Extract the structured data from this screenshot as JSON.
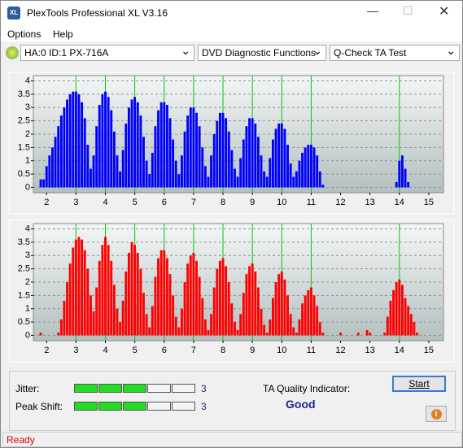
{
  "window": {
    "title": "PlexTools Professional XL V3.16",
    "icon": "XL"
  },
  "menu": [
    "Options",
    "Help"
  ],
  "toolbar": {
    "drive": "HA:0 ID:1  PX-716A",
    "function": "DVD Diagnostic Functions",
    "test": "Q-Check TA Test"
  },
  "chart_data": [
    {
      "type": "bar",
      "color": "#0000ff",
      "grid": true,
      "marker_color": "#00cc00",
      "markers": [
        3,
        4,
        5,
        6,
        7,
        8,
        9,
        10,
        11,
        14
      ],
      "xlim": [
        1.55,
        15.5
      ],
      "ylim": [
        -0.2,
        4.2
      ],
      "xticks": [
        2,
        3,
        4,
        5,
        6,
        7,
        8,
        9,
        10,
        11,
        12,
        13,
        14,
        15
      ],
      "yticks": [
        0,
        0.5,
        1,
        1.5,
        2,
        2.5,
        3,
        3.5,
        4
      ],
      "x": [
        1.8,
        1.9,
        2.0,
        2.1,
        2.2,
        2.3,
        2.4,
        2.5,
        2.6,
        2.7,
        2.8,
        2.9,
        3.0,
        3.1,
        3.2,
        3.3,
        3.4,
        3.5,
        3.6,
        3.7,
        3.8,
        3.9,
        4.0,
        4.1,
        4.2,
        4.3,
        4.4,
        4.5,
        4.6,
        4.7,
        4.8,
        4.9,
        5.0,
        5.1,
        5.2,
        5.3,
        5.4,
        5.5,
        5.6,
        5.7,
        5.8,
        5.9,
        6.0,
        6.1,
        6.2,
        6.3,
        6.4,
        6.5,
        6.6,
        6.7,
        6.8,
        6.9,
        7.0,
        7.1,
        7.2,
        7.3,
        7.4,
        7.5,
        7.6,
        7.7,
        7.8,
        7.9,
        8.0,
        8.1,
        8.2,
        8.3,
        8.4,
        8.5,
        8.6,
        8.7,
        8.8,
        8.9,
        9.0,
        9.1,
        9.2,
        9.3,
        9.4,
        9.5,
        9.6,
        9.7,
        9.8,
        9.9,
        10.0,
        10.1,
        10.2,
        10.3,
        10.4,
        10.5,
        10.6,
        10.7,
        10.8,
        10.9,
        11.0,
        11.1,
        11.2,
        11.3,
        11.4,
        11.5,
        11.6,
        11.7,
        11.8,
        11.9,
        12.0,
        12.1,
        12.2,
        12.3,
        12.4,
        12.5,
        12.6,
        12.7,
        12.8,
        12.9,
        13.0,
        13.1,
        13.2,
        13.3,
        13.4,
        13.5,
        13.6,
        13.7,
        13.8,
        13.9,
        14.0,
        14.1,
        14.2,
        14.3,
        14.4,
        14.5,
        14.6
      ],
      "values": [
        0.3,
        0.3,
        0.8,
        1.2,
        1.5,
        1.9,
        2.3,
        2.7,
        3.0,
        3.3,
        3.5,
        3.6,
        3.6,
        3.5,
        3.2,
        2.6,
        1.6,
        0.7,
        1.2,
        2.3,
        3.1,
        3.5,
        3.6,
        3.4,
        2.9,
        2.1,
        1.2,
        0.6,
        1.4,
        2.4,
        3.0,
        3.3,
        3.4,
        3.2,
        2.7,
        1.9,
        1.0,
        0.5,
        1.3,
        2.3,
        2.9,
        3.2,
        3.2,
        3.1,
        2.6,
        1.8,
        1.0,
        0.5,
        1.2,
        2.1,
        2.7,
        3.0,
        3.0,
        2.8,
        2.3,
        1.5,
        0.8,
        0.4,
        1.2,
        2.0,
        2.5,
        2.8,
        2.8,
        2.6,
        2.1,
        1.4,
        0.7,
        0.4,
        1.1,
        1.8,
        2.3,
        2.6,
        2.6,
        2.4,
        1.9,
        1.2,
        0.6,
        0.4,
        1.1,
        1.8,
        2.2,
        2.4,
        2.4,
        2.2,
        1.6,
        0.9,
        0.4,
        0.6,
        1.0,
        1.3,
        1.5,
        1.6,
        1.6,
        1.5,
        1.2,
        0.6,
        0.1,
        0,
        0,
        0,
        0,
        0,
        0,
        0,
        0,
        0,
        0,
        0,
        0,
        0,
        0,
        0,
        0,
        0,
        0,
        0,
        0,
        0,
        0,
        0,
        0,
        0.2,
        1.0,
        1.2,
        0.7,
        0.2,
        0,
        0,
        0
      ]
    },
    {
      "type": "bar",
      "color": "#ff0000",
      "grid": true,
      "marker_color": "#00cc00",
      "markers": [
        3,
        4,
        5,
        6,
        7,
        8,
        9,
        10,
        11,
        14
      ],
      "xlim": [
        1.55,
        15.5
      ],
      "ylim": [
        -0.2,
        4.2
      ],
      "xticks": [
        2,
        3,
        4,
        5,
        6,
        7,
        8,
        9,
        10,
        11,
        12,
        13,
        14,
        15
      ],
      "yticks": [
        0,
        0.5,
        1,
        1.5,
        2,
        2.5,
        3,
        3.5,
        4
      ],
      "x": [
        1.8,
        1.9,
        2.0,
        2.1,
        2.2,
        2.3,
        2.4,
        2.5,
        2.6,
        2.7,
        2.8,
        2.9,
        3.0,
        3.1,
        3.2,
        3.3,
        3.4,
        3.5,
        3.6,
        3.7,
        3.8,
        3.9,
        4.0,
        4.1,
        4.2,
        4.3,
        4.4,
        4.5,
        4.6,
        4.7,
        4.8,
        4.9,
        5.0,
        5.1,
        5.2,
        5.3,
        5.4,
        5.5,
        5.6,
        5.7,
        5.8,
        5.9,
        6.0,
        6.1,
        6.2,
        6.3,
        6.4,
        6.5,
        6.6,
        6.7,
        6.8,
        6.9,
        7.0,
        7.1,
        7.2,
        7.3,
        7.4,
        7.5,
        7.6,
        7.7,
        7.8,
        7.9,
        8.0,
        8.1,
        8.2,
        8.3,
        8.4,
        8.5,
        8.6,
        8.7,
        8.8,
        8.9,
        9.0,
        9.1,
        9.2,
        9.3,
        9.4,
        9.5,
        9.6,
        9.7,
        9.8,
        9.9,
        10.0,
        10.1,
        10.2,
        10.3,
        10.4,
        10.5,
        10.6,
        10.7,
        10.8,
        10.9,
        11.0,
        11.1,
        11.2,
        11.3,
        11.4,
        11.5,
        11.6,
        11.7,
        11.8,
        11.9,
        12.0,
        12.1,
        12.2,
        12.3,
        12.4,
        12.5,
        12.6,
        12.7,
        12.8,
        12.9,
        13.0,
        13.1,
        13.2,
        13.3,
        13.4,
        13.5,
        13.6,
        13.7,
        13.8,
        13.9,
        14.0,
        14.1,
        14.2,
        14.3,
        14.4,
        14.5,
        14.6
      ],
      "values": [
        0.1,
        0,
        0,
        0,
        0,
        0,
        0.1,
        0.6,
        1.3,
        2.0,
        2.7,
        3.3,
        3.6,
        3.7,
        3.6,
        3.2,
        2.5,
        1.5,
        0.9,
        1.8,
        2.8,
        3.4,
        3.7,
        3.4,
        2.8,
        1.9,
        1.0,
        0.5,
        1.3,
        2.4,
        3.1,
        3.5,
        3.4,
        3.1,
        2.5,
        1.6,
        0.8,
        0.3,
        1.1,
        2.2,
        2.9,
        3.2,
        3.2,
        2.9,
        2.3,
        1.5,
        0.7,
        0.3,
        1.0,
        2.0,
        2.7,
        3.0,
        3.1,
        2.8,
        2.2,
        1.4,
        0.6,
        0.2,
        0.8,
        1.8,
        2.5,
        2.8,
        2.9,
        2.6,
        2.0,
        1.2,
        0.5,
        0.2,
        0.8,
        1.6,
        2.3,
        2.6,
        2.7,
        2.4,
        1.8,
        1.0,
        0.4,
        0.1,
        0.6,
        1.4,
        2.0,
        2.3,
        2.4,
        2.1,
        1.5,
        0.8,
        0.3,
        0.1,
        0.6,
        1.2,
        1.5,
        1.7,
        1.8,
        1.5,
        1.1,
        0.5,
        0.1,
        0,
        0,
        0,
        0,
        0,
        0.1,
        0,
        0,
        0,
        0,
        0,
        0.1,
        0,
        0,
        0.2,
        0.1,
        0,
        0,
        0,
        0,
        0.1,
        0.7,
        1.3,
        1.7,
        2.0,
        2.1,
        1.9,
        1.4,
        1.1,
        0.8,
        0.5,
        0.1
      ]
    }
  ],
  "jitter": {
    "label": "Jitter:",
    "value": 3
  },
  "peak_shift": {
    "label": "Peak Shift:",
    "value": 3
  },
  "quality": {
    "label": "TA Quality Indicator:",
    "value": "Good"
  },
  "start_button": "Start",
  "status": "Ready"
}
